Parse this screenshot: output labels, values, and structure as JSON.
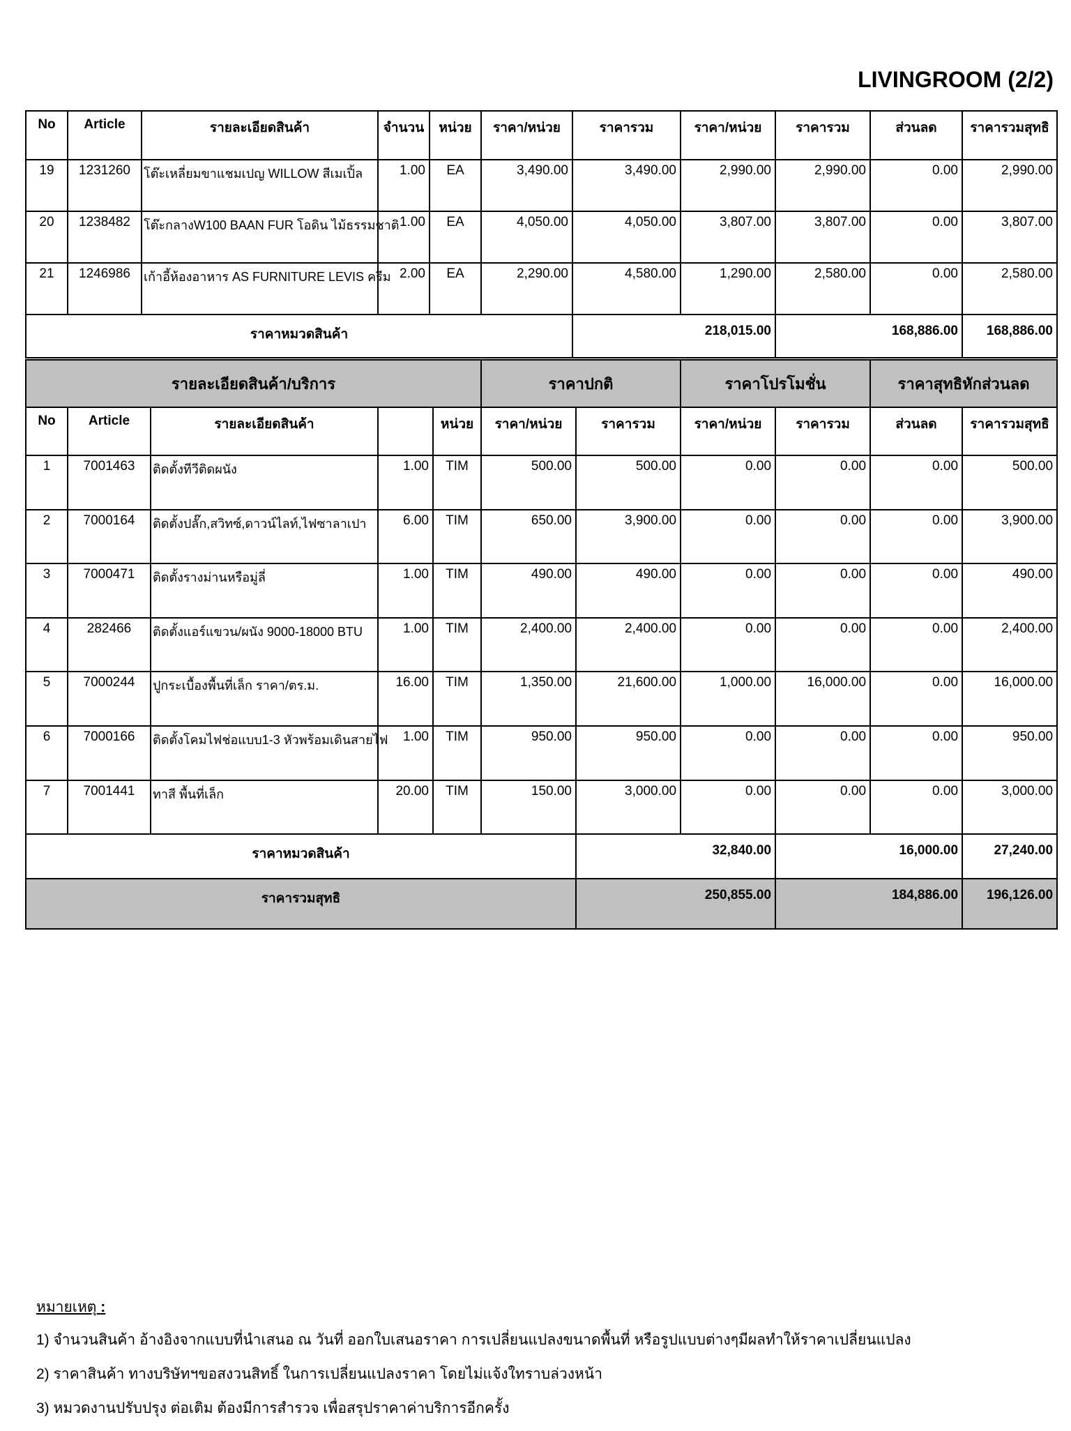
{
  "title": "LIVINGROOM (2/2)",
  "products": {
    "headers": [
      "No",
      "Article",
      "รายละเอียดสินค้า",
      "จำนวน",
      "หน่วย",
      "ราคา/หน่วย",
      "ราคารวม",
      "ราคา/หน่วย",
      "ราคารวม",
      "ส่วนลด",
      "ราคารวมสุทธิ"
    ],
    "rows": [
      [
        "19",
        "1231260",
        "โต๊ะเหลี่ยมขาแชมเปญ WILLOW สีเมเปิ้ล",
        "1.00",
        "EA",
        "3,490.00",
        "3,490.00",
        "2,990.00",
        "2,990.00",
        "0.00",
        "2,990.00"
      ],
      [
        "20",
        "1238482",
        "โต๊ะกลางW100 BAAN FUR โอดิน ไม้ธรรมชาติ",
        "1.00",
        "EA",
        "4,050.00",
        "4,050.00",
        "3,807.00",
        "3,807.00",
        "0.00",
        "3,807.00"
      ],
      [
        "21",
        "1246986",
        "เก้าอี้ห้องอาหาร AS FURNITURE LEVIS ครีม",
        "2.00",
        "EA",
        "2,290.00",
        "4,580.00",
        "1,290.00",
        "2,580.00",
        "0.00",
        "2,580.00"
      ]
    ],
    "subtotal": {
      "label": "ราคาหมวดสินค้า",
      "normal": "218,015.00",
      "promo": "168,886.00",
      "net": "168,886.00"
    }
  },
  "services": {
    "groups": [
      "รายละเอียดสินค้า/บริการ",
      "ราคาปกติ",
      "ราคาโปรโมชั่น",
      "ราคาสุทธิหักส่วนลด"
    ],
    "headers": [
      "No",
      "Article",
      "รายละเอียดสินค้า",
      "",
      "หน่วย",
      "ราคา/หน่วย",
      "ราคารวม",
      "ราคา/หน่วย",
      "ราคารวม",
      "ส่วนลด",
      "ราคารวมสุทธิ"
    ],
    "rows": [
      [
        "1",
        "7001463",
        "ติดตั้งทีวีติดผนัง",
        "1.00",
        "TIM",
        "500.00",
        "500.00",
        "0.00",
        "0.00",
        "0.00",
        "500.00"
      ],
      [
        "2",
        "7000164",
        "ติดตั้งปลั๊ก,สวิทซ์,ดาวน์ไลท์,ไฟซาลาเปา",
        "6.00",
        "TIM",
        "650.00",
        "3,900.00",
        "0.00",
        "0.00",
        "0.00",
        "3,900.00"
      ],
      [
        "3",
        "7000471",
        "ติดตั้งรางม่านหรือมู่ลี่",
        "1.00",
        "TIM",
        "490.00",
        "490.00",
        "0.00",
        "0.00",
        "0.00",
        "490.00"
      ],
      [
        "4",
        "282466",
        "ติดตั้งแอร์แขวน/ผนัง 9000-18000 BTU",
        "1.00",
        "TIM",
        "2,400.00",
        "2,400.00",
        "0.00",
        "0.00",
        "0.00",
        "2,400.00"
      ],
      [
        "5",
        "7000244",
        "ปูกระเบื้องพื้นที่เล็ก ราคา/ตร.ม.",
        "16.00",
        "TIM",
        "1,350.00",
        "21,600.00",
        "1,000.00",
        "16,000.00",
        "0.00",
        "16,000.00"
      ],
      [
        "6",
        "7000166",
        "ติดตั้งโคมไฟช่อแบบ1-3 หัวพร้อมเดินสายไฟ",
        "1.00",
        "TIM",
        "950.00",
        "950.00",
        "0.00",
        "0.00",
        "0.00",
        "950.00"
      ],
      [
        "7",
        "7001441",
        "ทาสี พื้นที่เล็ก",
        "20.00",
        "TIM",
        "150.00",
        "3,000.00",
        "0.00",
        "0.00",
        "0.00",
        "3,000.00"
      ]
    ],
    "subtotal": {
      "label": "ราคาหมวดสินค้า",
      "normal": "32,840.00",
      "promo": "16,000.00",
      "net": "27,240.00"
    },
    "grand_total": {
      "label": "ราคารวมสุทธิ",
      "normal": "250,855.00",
      "promo": "184,886.00",
      "net": "196,126.00"
    }
  },
  "notes": {
    "heading": "หมายเหตุ",
    "colon": ":",
    "items": [
      "1) จำนวนสินค้า อ้างอิงจากแบบที่นำเสนอ ณ วันที่ ออกใบเสนอราคา การเปลี่ยนแปลงขนาดพื้นที่ หรือรูปแบบต่างๆมีผลทำให้ราคาเปลี่ยนแปลง",
      "2) ราคาสินค้า ทางบริษัทฯขอสงวนสิทธิ์ ในการเปลี่ยนแปลงราคา โดยไม่แจ้งใทราบล่วงหน้า",
      "3) หมวดงานปรับปรุง ต่อเติม ต้องมีการสำรวจ เพื่อสรุปราคาค่าบริการอีกครั้ง"
    ]
  }
}
